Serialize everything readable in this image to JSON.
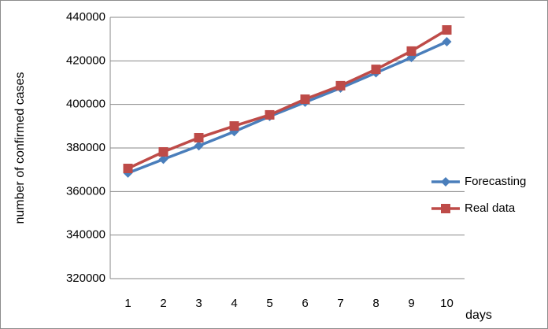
{
  "chart_data": {
    "type": "line",
    "y_label": "number of confirmed cases",
    "x_label": "days",
    "categories": [
      "1",
      "2",
      "3",
      "4",
      "5",
      "6",
      "7",
      "8",
      "9",
      "10"
    ],
    "series": [
      {
        "name": "Forecasting",
        "color": "#4a7ebb",
        "marker": "diamond",
        "values": [
          368500,
          374800,
          381000,
          387500,
          394500,
          401000,
          407500,
          414500,
          421500,
          428800
        ]
      },
      {
        "name": "Real data",
        "color": "#be4b48",
        "marker": "square",
        "values": [
          370600,
          378200,
          384700,
          390100,
          395200,
          402400,
          408600,
          416100,
          424500,
          434200
        ]
      }
    ],
    "ylim": [
      320000,
      440000
    ],
    "yticks": [
      320000,
      340000,
      360000,
      380000,
      400000,
      420000,
      440000
    ],
    "grid": true,
    "legend": "right"
  }
}
